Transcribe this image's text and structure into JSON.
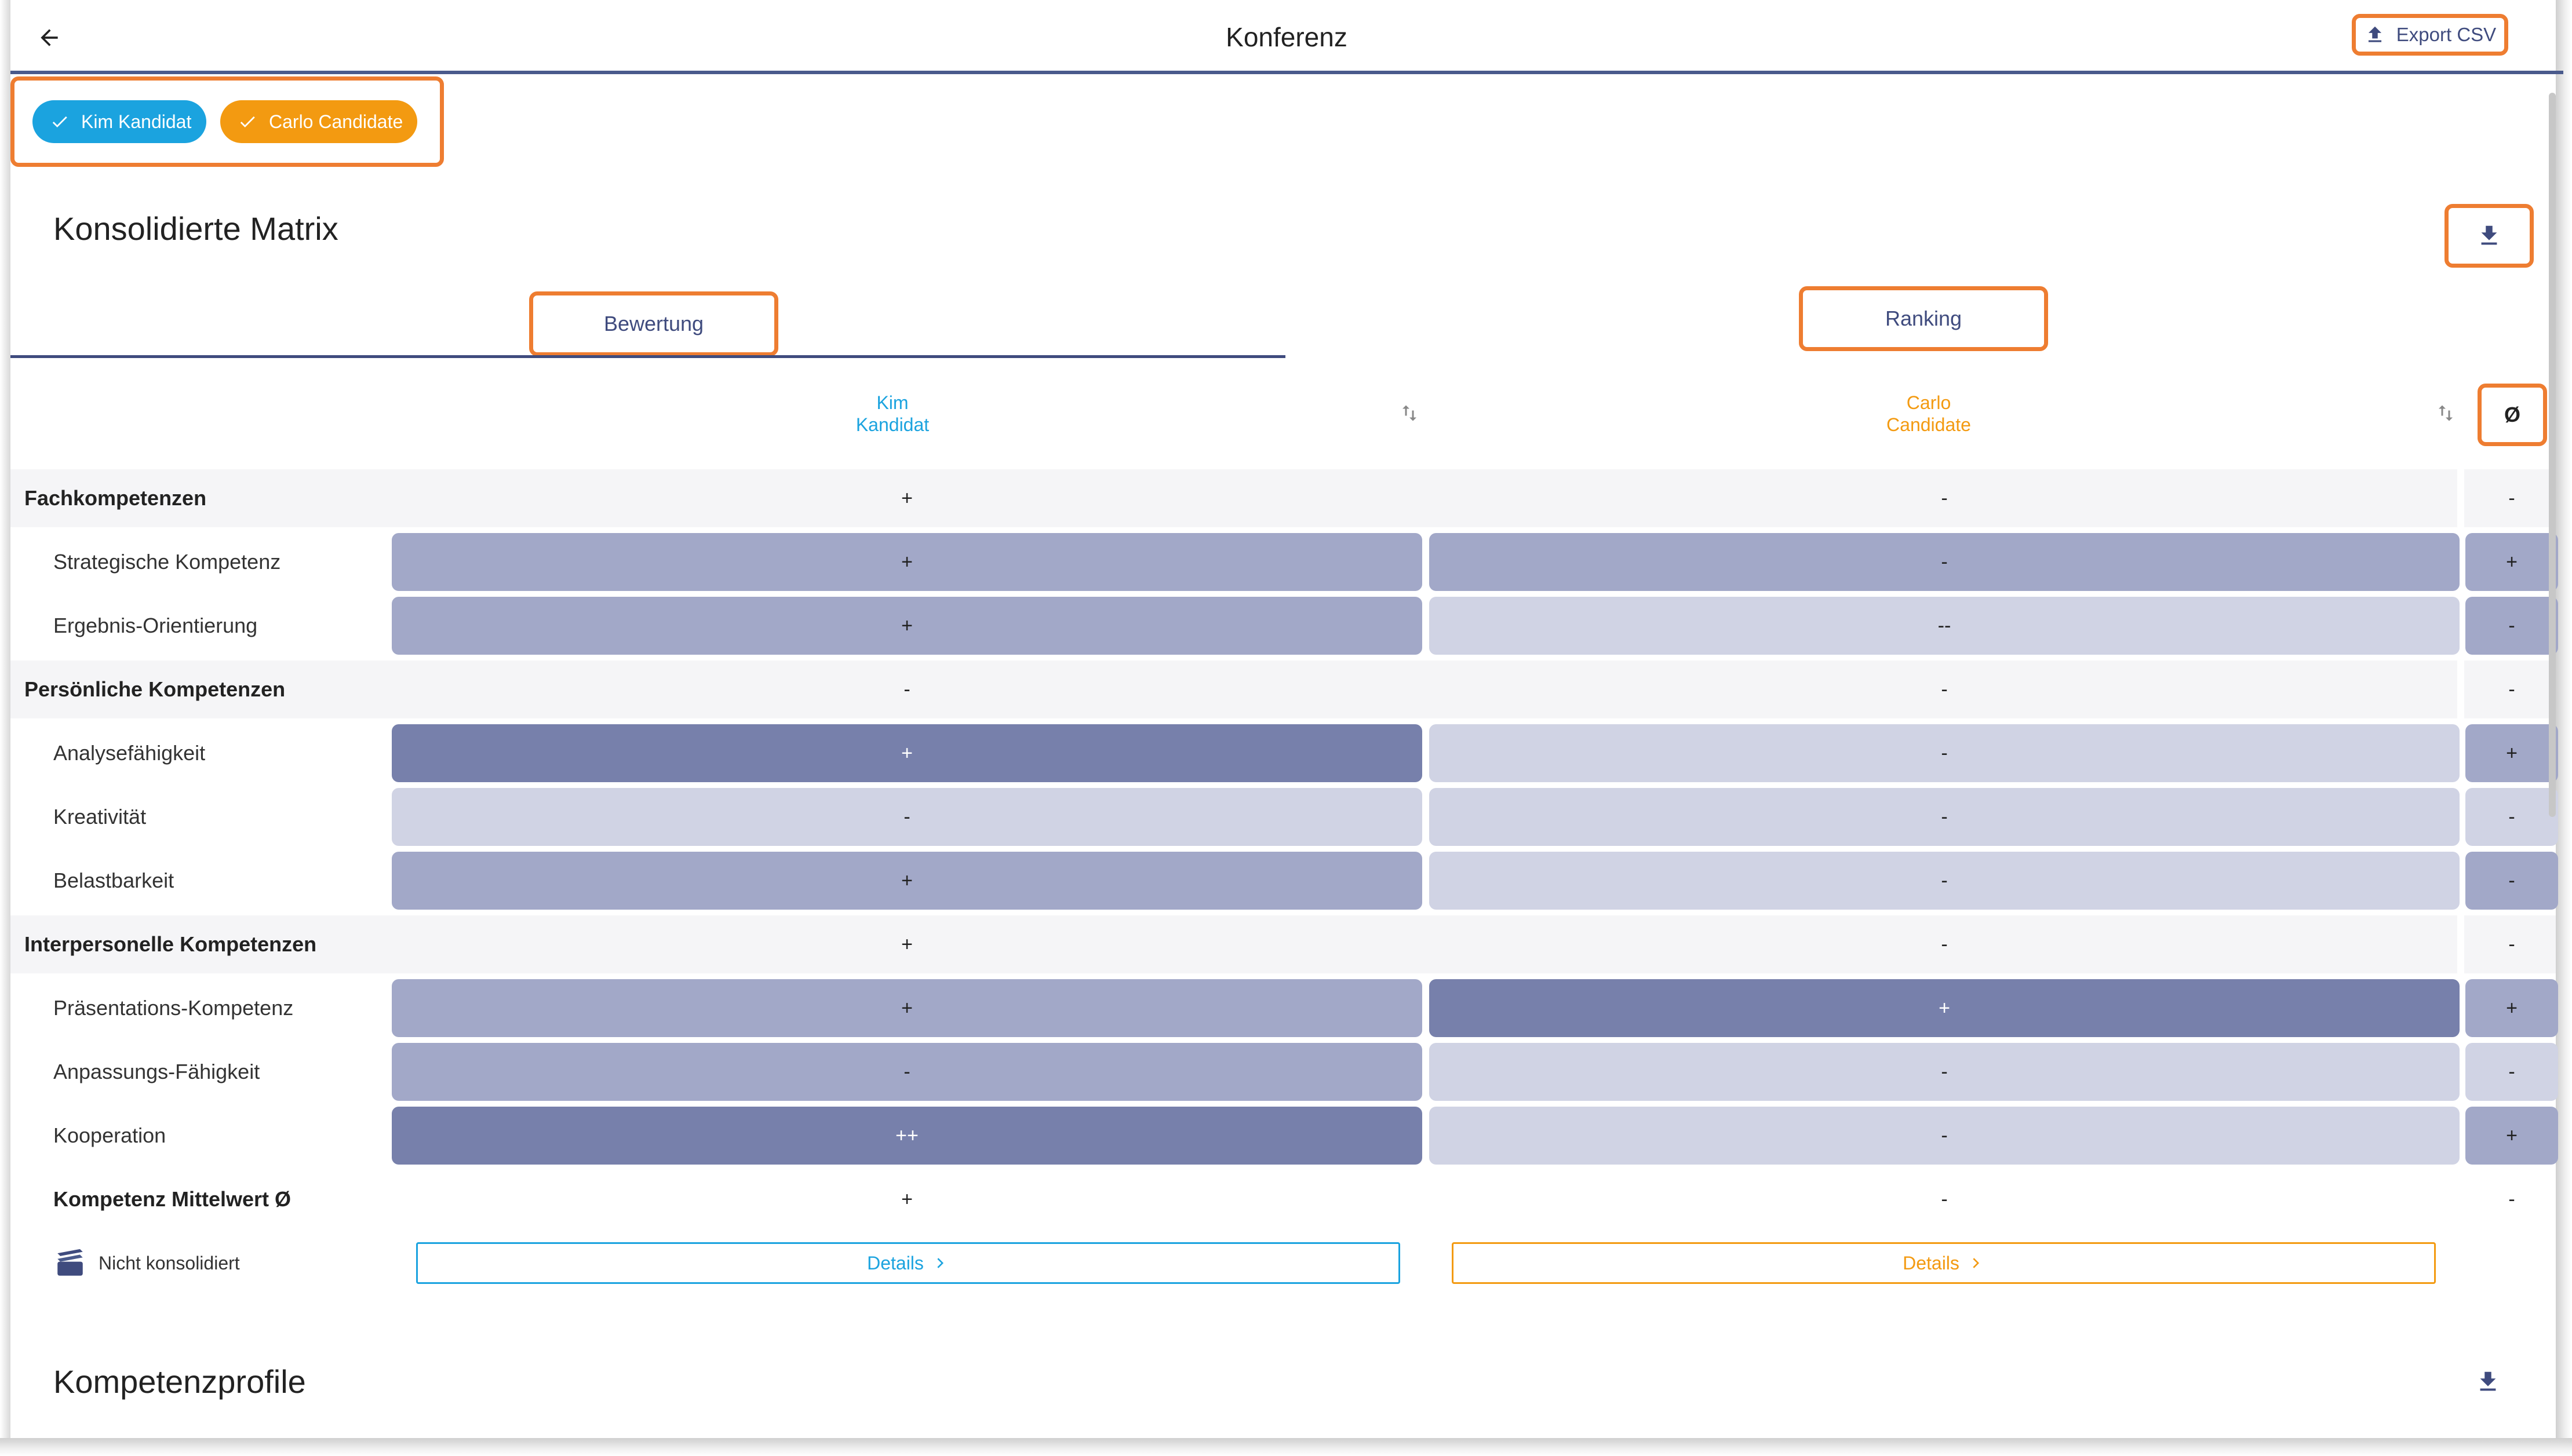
{
  "header": {
    "title": "Konferenz",
    "export_label": "Export CSV"
  },
  "candidates": [
    {
      "name": "Kim Kandidat",
      "head_line1": "Kim",
      "head_line2": "Kandidat",
      "color": "#1ba3df"
    },
    {
      "name": "Carlo Candidate",
      "head_line1": "Carlo",
      "head_line2": "Candidate",
      "color": "#f39a11"
    }
  ],
  "matrix": {
    "title": "Konsolidierte Matrix",
    "tabs": [
      {
        "label": "Bewertung",
        "active": true
      },
      {
        "label": "Ranking",
        "active": false
      }
    ],
    "avg_header": "Ø",
    "groups": [
      {
        "label": "Fachkompetenzen",
        "values": [
          "+",
          "-"
        ],
        "avg": "-"
      },
      {
        "label": "Persönliche Kompetenzen",
        "values": [
          "-",
          "-"
        ],
        "avg": "-"
      },
      {
        "label": "Interpersonelle Kompetenzen",
        "values": [
          "+",
          "-"
        ],
        "avg": "-"
      }
    ],
    "rows": [
      {
        "label": "Strategische Kompetenz",
        "values": [
          "+",
          "-"
        ],
        "avg": "+"
      },
      {
        "label": "Ergebnis-Orientierung",
        "values": [
          "+",
          "--"
        ],
        "avg": "-"
      },
      {
        "label": "Analysefähigkeit",
        "values": [
          "+",
          "-"
        ],
        "avg": "+"
      },
      {
        "label": "Kreativität",
        "values": [
          "-",
          "-"
        ],
        "avg": "-"
      },
      {
        "label": "Belastbarkeit",
        "values": [
          "+",
          "-"
        ],
        "avg": "-"
      },
      {
        "label": "Präsentations-Kompetenz",
        "values": [
          "+",
          "+"
        ],
        "avg": "+"
      },
      {
        "label": "Anpassungs-Fähigkeit",
        "values": [
          "-",
          "-"
        ],
        "avg": "-"
      },
      {
        "label": "Kooperation",
        "values": [
          "++",
          "-"
        ],
        "avg": "+"
      }
    ],
    "mean": {
      "label": "Kompetenz Mittelwert Ø",
      "values": [
        "+",
        "-"
      ],
      "avg": "-"
    },
    "status_label": "Nicht konsolidiert",
    "details_label": "Details"
  },
  "profiles": {
    "title": "Kompetenzprofile"
  },
  "colors": {
    "accent": "#3f4b7e",
    "highlight": "#ee7d31"
  }
}
